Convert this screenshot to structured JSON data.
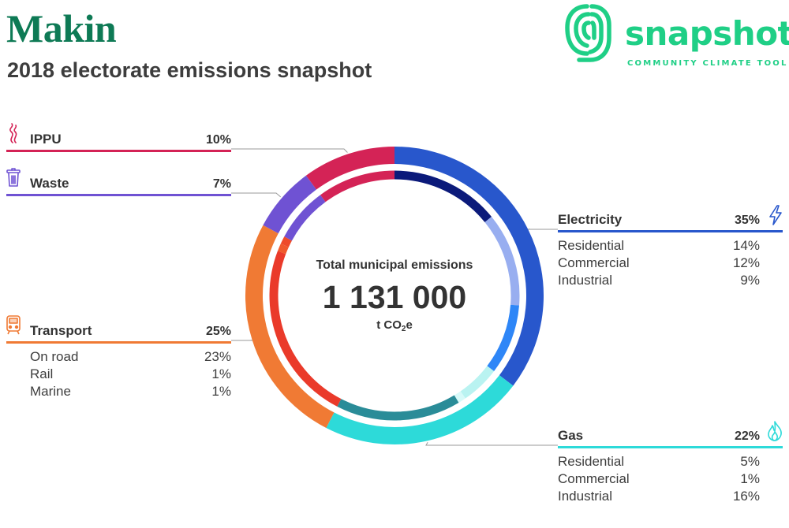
{
  "header": {
    "title": "Makin",
    "subtitle": "2018 electorate emissions snapshot"
  },
  "logo": {
    "wordmark": "snapshot",
    "tagline": "COMMUNITY CLIMATE TOOL",
    "color": "#1fcf86"
  },
  "center": {
    "label": "Total municipal emissions",
    "value": "1 131 000",
    "unit_prefix": "t CO",
    "unit_sub": "2",
    "unit_suffix": "e"
  },
  "chart_data": {
    "type": "pie",
    "title": "Total municipal emissions",
    "total": 1131000,
    "unit": "t CO2e",
    "series": [
      {
        "name": "Electricity",
        "value": 35,
        "percent_label": "35%",
        "color": "#2857cc",
        "icon": "lightning-icon",
        "breakdown": [
          {
            "name": "Residential",
            "value": 14,
            "percent_label": "14%",
            "color": "#0b1a7a"
          },
          {
            "name": "Commercial",
            "value": 12,
            "percent_label": "12%",
            "color": "#98aef0"
          },
          {
            "name": "Industrial",
            "value": 9,
            "percent_label": "9%",
            "color": "#2e86f7"
          }
        ]
      },
      {
        "name": "Gas",
        "value": 22,
        "percent_label": "22%",
        "color": "#2ddad9",
        "icon": "flame-icon",
        "breakdown": [
          {
            "name": "Residential",
            "value": 5,
            "percent_label": "5%",
            "color": "#b9f3f1"
          },
          {
            "name": "Commercial",
            "value": 1,
            "percent_label": "1%",
            "color": "#d7faf9"
          },
          {
            "name": "Industrial",
            "value": 16,
            "percent_label": "16%",
            "color": "#2a8c98"
          }
        ]
      },
      {
        "name": "Transport",
        "value": 25,
        "percent_label": "25%",
        "color": "#f07a34",
        "icon": "train-icon",
        "breakdown": [
          {
            "name": "On road",
            "value": 23,
            "percent_label": "23%",
            "color": "#ea3a2a"
          },
          {
            "name": "Rail",
            "value": 1,
            "percent_label": "1%",
            "color": "#f05a2c"
          },
          {
            "name": "Marine",
            "value": 1,
            "percent_label": "1%",
            "color": "#ee4b2a"
          }
        ]
      },
      {
        "name": "Waste",
        "value": 7,
        "percent_label": "7%",
        "color": "#6f52d3",
        "icon": "bin-icon",
        "breakdown": []
      },
      {
        "name": "IPPU",
        "value": 10,
        "percent_label": "10%",
        "color": "#d42356",
        "icon": "smoke-icon",
        "breakdown": []
      }
    ]
  }
}
